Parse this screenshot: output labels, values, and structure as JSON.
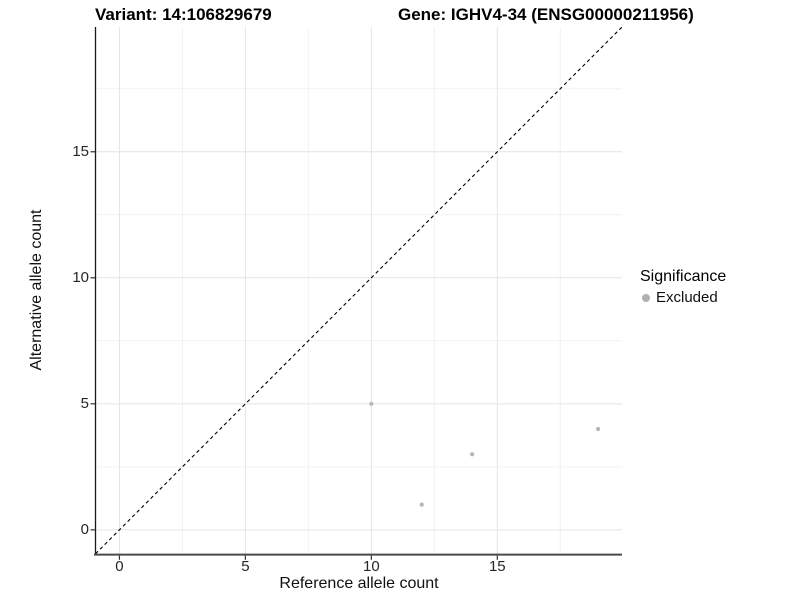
{
  "chart_data": {
    "type": "scatter",
    "title_left": "Variant: 14:106829679",
    "title_right": "Gene: IGHV4-34 (ENSG00000211956)",
    "xlabel": "Reference allele count",
    "ylabel": "Alternative allele count",
    "xlim": [
      -0.95,
      19.95
    ],
    "ylim": [
      -0.95,
      19.95
    ],
    "x_major_ticks": [
      0,
      5,
      10,
      15
    ],
    "y_major_ticks": [
      0,
      5,
      10,
      15
    ],
    "x_minor_ticks": [
      2.5,
      7.5,
      12.5,
      17.5
    ],
    "y_minor_ticks": [
      2.5,
      7.5,
      12.5,
      17.5
    ],
    "grid": "major+minor",
    "legend_position": "right",
    "series": [
      {
        "name": "Excluded",
        "marker": "circle",
        "color": "#b6b6b6",
        "points": [
          {
            "x": 10,
            "y": 5
          },
          {
            "x": 12,
            "y": 1
          },
          {
            "x": 14,
            "y": 3
          },
          {
            "x": 19,
            "y": 4
          }
        ]
      }
    ],
    "reference_line": {
      "description": "identity line y = x",
      "style": "dashed",
      "color": "#000000",
      "from": {
        "x": -0.95,
        "y": -0.95
      },
      "to": {
        "x": 19.95,
        "y": 19.95
      }
    }
  },
  "legend": {
    "title": "Significance",
    "items": [
      {
        "label": "Excluded",
        "marker": "circle",
        "color": "#b0b0b0"
      }
    ]
  },
  "colors": {
    "background": "#ffffff",
    "grid_major": "#e4e4e4",
    "grid_minor": "#f2f2f2",
    "axis_line_y": "#1a1a1a",
    "axis_line_x": "#4a4a4a",
    "tick_mark": "#333333",
    "tick_label": "#262626",
    "point": "#b6b6b6",
    "title": "#000000"
  }
}
